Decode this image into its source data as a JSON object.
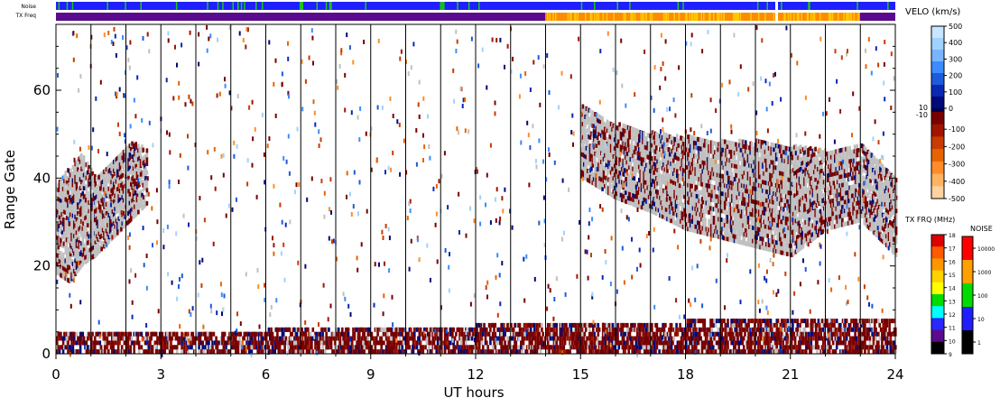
{
  "chart_data": {
    "type": "heatmap",
    "title": "",
    "xlabel": "UT hours",
    "ylabel": "Range Gate",
    "x_range": [
      0,
      24
    ],
    "y_range": [
      0,
      75
    ],
    "x_ticks": [
      "0",
      "3",
      "6",
      "9",
      "12",
      "15",
      "18",
      "21",
      "24"
    ],
    "y_ticks": [
      "0",
      "20",
      "40",
      "60"
    ],
    "beam_scan_lines_ut": [
      1,
      2,
      3,
      4,
      5,
      6,
      7,
      8,
      9,
      10,
      11,
      12,
      13,
      14,
      15,
      16,
      17,
      18,
      19,
      20,
      21,
      22,
      23
    ],
    "ground_scatter_color": "#c0c0c0",
    "scatter_regions": [
      {
        "name": "ground-scatter",
        "ut": [
          0,
          1.1
        ],
        "gate_low": [
          18,
          16,
          20,
          22
        ],
        "gate_high": [
          38,
          42,
          45,
          40
        ]
      },
      {
        "name": "ground-scatter",
        "ut": [
          1.1,
          2.6
        ],
        "gate_low": [
          22,
          26,
          30,
          34
        ],
        "gate_high": [
          40,
          44,
          48,
          46
        ]
      },
      {
        "name": "ground-scatter",
        "ut": [
          15,
          24
        ],
        "gate_low": [
          40,
          35,
          32,
          28,
          26,
          24,
          22,
          28,
          30,
          22
        ],
        "gate_high": [
          56,
          52,
          50,
          49,
          48,
          48,
          47,
          46,
          48,
          40
        ]
      },
      {
        "name": "near-range-scatter",
        "ut": [
          0,
          24
        ],
        "gate_low": [
          0,
          0
        ],
        "gate_high": [
          4,
          8
        ]
      }
    ]
  },
  "top_bars": {
    "noise_label": "Noise",
    "txfreq_label": "TX Freq",
    "noise_colors": [
      "#1f1fff",
      "#18c818"
    ],
    "txfreq_colors": [
      "#5a0a8c",
      "#ffc800",
      "#ff8c00"
    ]
  },
  "velocity_scale": {
    "title": "VELO (km/s)",
    "pos_ticks": [
      "500",
      "400",
      "300",
      "200",
      "100",
      "0"
    ],
    "neg_ticks": [
      "-100",
      "-200",
      "-300",
      "-400",
      "-500"
    ],
    "mid_labels": [
      "10",
      "-10"
    ],
    "pos_colors": [
      "#c8e6ff",
      "#a0d2ff",
      "#78b4ff",
      "#3c8cff",
      "#1e5adc",
      "#0a28b4",
      "#000a78"
    ],
    "neg_colors": [
      "#780000",
      "#a01400",
      "#c83c00",
      "#e66400",
      "#ff8c28",
      "#ffb464",
      "#ffd2a0"
    ]
  },
  "freq_scale": {
    "title": "TX FRQ (MHz)",
    "ticks": [
      "18",
      "17",
      "16",
      "15",
      "14",
      "13",
      "12",
      "11",
      "10",
      "9"
    ],
    "colors": [
      "#dc0000",
      "#ff5a00",
      "#ff9600",
      "#ffd200",
      "#ffff00",
      "#00dc00",
      "#00ffff",
      "#2828ff",
      "#5a0a8c",
      "#000000"
    ]
  },
  "noise_scale": {
    "title": "NOISE",
    "ticks": [
      "10000",
      "1000",
      "100",
      "10",
      "1"
    ],
    "colors": [
      "#ff0000",
      "#ffa000",
      "#00dc00",
      "#1e1eff",
      "#000000"
    ]
  }
}
